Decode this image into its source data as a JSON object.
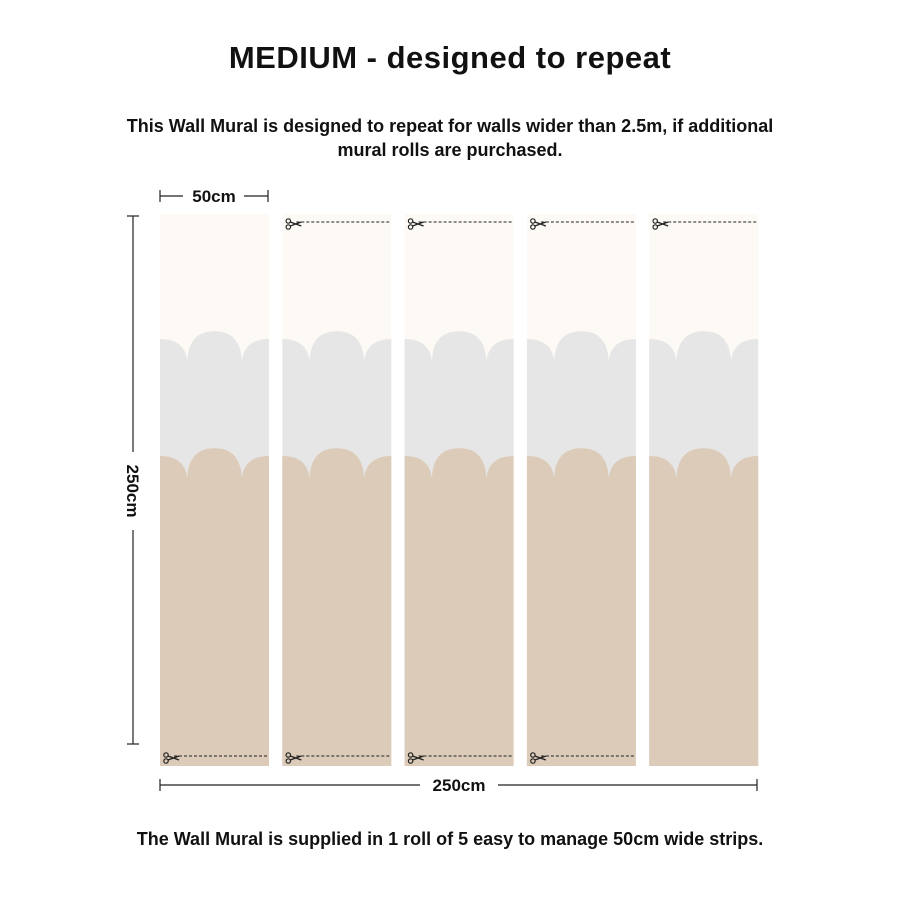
{
  "title": "MEDIUM - designed to repeat",
  "subtitle": "This Wall Mural is designed to repeat for walls wider than 2.5m, if additional mural rolls are purchased.",
  "footer": "The Wall Mural is supplied in 1 roll of 5 easy to manage 50cm wide strips.",
  "dimensions": {
    "strip_width_label": "50cm",
    "height_label": "250cm",
    "total_width_label": "250cm"
  },
  "strips": {
    "count": 5,
    "cut_marks": [
      {
        "top": false,
        "bottom": true
      },
      {
        "top": true,
        "bottom": true
      },
      {
        "top": true,
        "bottom": true
      },
      {
        "top": true,
        "bottom": true
      },
      {
        "top": true,
        "bottom": false
      }
    ]
  },
  "colors": {
    "top_band": "#fdfaf6",
    "middle_band": "#e6e6e6",
    "bottom_band": "#dccbb8",
    "line": "#222222"
  },
  "icons": {
    "cut_mark": "scissors-icon"
  }
}
